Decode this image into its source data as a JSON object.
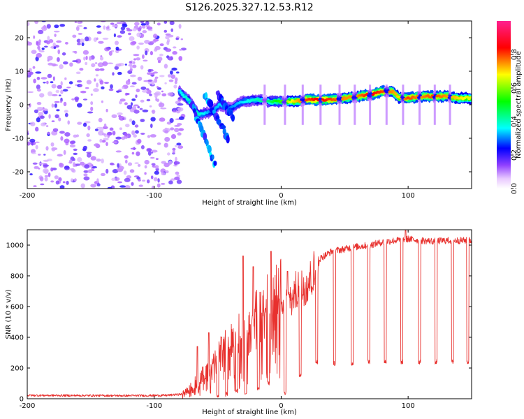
{
  "title": "S126.2025.327.12.53.R12",
  "chart_data": [
    {
      "type": "heatmap",
      "name": "spectrogram",
      "xlabel": "Height of straight line (km)",
      "ylabel": "Frequency (Hz)",
      "xlim": [
        -200,
        150
      ],
      "ylim": [
        -25,
        25
      ],
      "xticks": [
        -200,
        -100,
        0,
        100
      ],
      "yticks": [
        -20,
        -10,
        0,
        10,
        20
      ],
      "colorbar": {
        "label": "Normalized spectral amplitude",
        "range": [
          0,
          1
        ],
        "ticks": [
          0.0,
          0.2,
          0.4,
          0.6,
          0.8
        ],
        "tick_labels": [
          "0.0",
          "0.2",
          "0.4",
          "0.6",
          "0.8"
        ],
        "colormap": [
          "#ffffff",
          "#b060ff",
          "#0000ff",
          "#00ffff",
          "#00ff00",
          "#ffff00",
          "#ff0000",
          "#ff2080"
        ]
      },
      "noise_region_x": [
        -200,
        -80
      ],
      "noise_level": 0.15,
      "ridge": [
        {
          "x": -80,
          "f": 4,
          "a": 0.35
        },
        {
          "x": -72,
          "f": 1,
          "a": 0.4
        },
        {
          "x": -65,
          "f": -3,
          "a": 0.4
        },
        {
          "x": -55,
          "f": -2,
          "a": 0.3
        },
        {
          "x": -48,
          "f": 0,
          "a": 0.35
        },
        {
          "x": -40,
          "f": -1,
          "a": 0.3
        },
        {
          "x": -30,
          "f": 1,
          "a": 0.35
        },
        {
          "x": -20,
          "f": 1.5,
          "a": 0.4
        },
        {
          "x": -10,
          "f": 1,
          "a": 0.45
        },
        {
          "x": 0,
          "f": 1,
          "a": 0.55
        },
        {
          "x": 10,
          "f": 1,
          "a": 0.7
        },
        {
          "x": 20,
          "f": 1.5,
          "a": 0.8
        },
        {
          "x": 30,
          "f": 1.5,
          "a": 0.85
        },
        {
          "x": 40,
          "f": 1.5,
          "a": 0.8
        },
        {
          "x": 50,
          "f": 2,
          "a": 0.75
        },
        {
          "x": 60,
          "f": 2.5,
          "a": 0.75
        },
        {
          "x": 70,
          "f": 3,
          "a": 0.85
        },
        {
          "x": 80,
          "f": 4,
          "a": 0.8
        },
        {
          "x": 88,
          "f": 4,
          "a": 0.75
        },
        {
          "x": 93,
          "f": 2,
          "a": 0.7
        },
        {
          "x": 100,
          "f": 2,
          "a": 0.8
        },
        {
          "x": 110,
          "f": 2.5,
          "a": 0.75
        },
        {
          "x": 120,
          "f": 2.5,
          "a": 0.8
        },
        {
          "x": 130,
          "f": 2.5,
          "a": 0.75
        },
        {
          "x": 140,
          "f": 2,
          "a": 0.7
        },
        {
          "x": 150,
          "f": 2,
          "a": 0.65
        }
      ],
      "branches": [
        {
          "x": [
            -70,
            -52
          ],
          "f": [
            0,
            -18
          ],
          "a": 0.3
        },
        {
          "x": [
            -60,
            -42
          ],
          "f": [
            3,
            -10
          ],
          "a": 0.3
        },
        {
          "x": [
            -50,
            -38
          ],
          "f": [
            3,
            -4
          ],
          "a": 0.25
        }
      ],
      "dropout_x": [
        -13,
        3,
        17,
        31,
        46,
        58,
        70,
        83,
        96,
        109,
        121,
        133
      ]
    },
    {
      "type": "line",
      "name": "snr",
      "xlabel": "Height of straight line (km)",
      "ylabel": "SNR (10 * v/v)",
      "xlim": [
        -200,
        150
      ],
      "ylim": [
        0,
        1100
      ],
      "xticks": [
        -200,
        -100,
        0,
        100
      ],
      "yticks": [
        0,
        200,
        400,
        600,
        800,
        1000
      ],
      "color": "#e8312e",
      "envelope": [
        {
          "x": -200,
          "y": 22
        },
        {
          "x": -120,
          "y": 20
        },
        {
          "x": -90,
          "y": 22
        },
        {
          "x": -78,
          "y": 30
        },
        {
          "x": -70,
          "y": 80
        },
        {
          "x": -60,
          "y": 160
        },
        {
          "x": -50,
          "y": 260
        },
        {
          "x": -40,
          "y": 340
        },
        {
          "x": -30,
          "y": 420
        },
        {
          "x": -20,
          "y": 520
        },
        {
          "x": -10,
          "y": 600
        },
        {
          "x": 0,
          "y": 650
        },
        {
          "x": 10,
          "y": 720
        },
        {
          "x": 20,
          "y": 820
        },
        {
          "x": 30,
          "y": 910
        },
        {
          "x": 40,
          "y": 960
        },
        {
          "x": 50,
          "y": 975
        },
        {
          "x": 60,
          "y": 990
        },
        {
          "x": 70,
          "y": 1000
        },
        {
          "x": 80,
          "y": 1020
        },
        {
          "x": 90,
          "y": 1030
        },
        {
          "x": 100,
          "y": 1040
        },
        {
          "x": 110,
          "y": 1030
        },
        {
          "x": 120,
          "y": 1025
        },
        {
          "x": 130,
          "y": 1030
        },
        {
          "x": 140,
          "y": 1030
        },
        {
          "x": 150,
          "y": 1030
        }
      ],
      "spikes": [
        {
          "x": -66,
          "y": 340
        },
        {
          "x": -57,
          "y": 430
        },
        {
          "x": -47,
          "y": 400
        },
        {
          "x": -35,
          "y": 560
        },
        {
          "x": -30,
          "y": 930
        },
        {
          "x": -22,
          "y": 860
        },
        {
          "x": -8,
          "y": 960
        },
        {
          "x": 5,
          "y": 830
        },
        {
          "x": 98,
          "y": 1100
        }
      ],
      "dips": [
        {
          "x": -50,
          "y": 20
        },
        {
          "x": -43,
          "y": 30
        },
        {
          "x": -35,
          "y": 50
        },
        {
          "x": -28,
          "y": 40
        },
        {
          "x": -18,
          "y": 60
        },
        {
          "x": -10,
          "y": 100
        },
        {
          "x": 3,
          "y": 40
        },
        {
          "x": 15,
          "y": 150
        },
        {
          "x": 28,
          "y": 240
        },
        {
          "x": 42,
          "y": 230
        },
        {
          "x": 56,
          "y": 230
        },
        {
          "x": 69,
          "y": 240
        },
        {
          "x": 82,
          "y": 240
        },
        {
          "x": 95,
          "y": 240
        },
        {
          "x": 109,
          "y": 240
        },
        {
          "x": 122,
          "y": 240
        },
        {
          "x": 135,
          "y": 240
        },
        {
          "x": 147,
          "y": 240
        }
      ]
    }
  ]
}
